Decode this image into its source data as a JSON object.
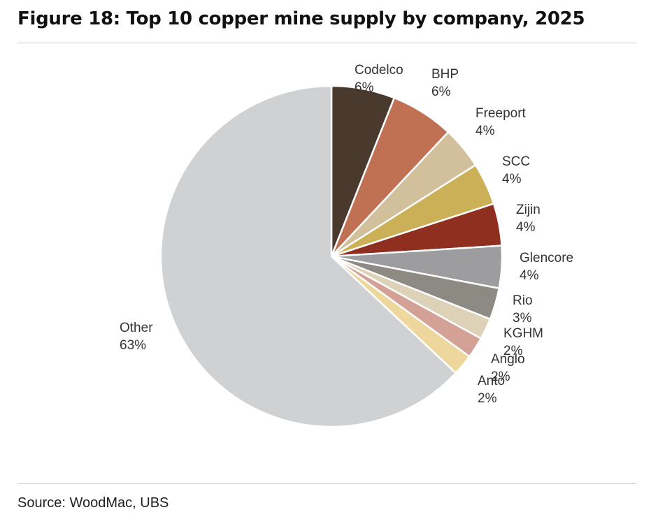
{
  "figure": {
    "title": "Figure 18: Top 10 copper mine supply by company, 2025",
    "source": "Source: WoodMac, UBS"
  },
  "chart_data": {
    "type": "pie",
    "title": "Figure 18: Top 10 copper mine supply by company, 2025",
    "unit": "%",
    "slices": [
      {
        "label": "Codelco",
        "value": 6,
        "color": "#4a3a2e"
      },
      {
        "label": "BHP",
        "value": 6,
        "color": "#c07153"
      },
      {
        "label": "Freeport",
        "value": 4,
        "color": "#d2bf9b"
      },
      {
        "label": "SCC",
        "value": 4,
        "color": "#cbb057"
      },
      {
        "label": "Zijin",
        "value": 4,
        "color": "#8e2f20"
      },
      {
        "label": "Glencore",
        "value": 4,
        "color": "#9d9da0"
      },
      {
        "label": "Rio",
        "value": 3,
        "color": "#8d8983"
      },
      {
        "label": "KGHM",
        "value": 2,
        "color": "#ddd1b8"
      },
      {
        "label": "Anglo",
        "value": 2,
        "color": "#d4a197"
      },
      {
        "label": "Anto",
        "value": 2,
        "color": "#eed79d"
      },
      {
        "label": "Other",
        "value": 63,
        "color": "#d0d1d3"
      }
    ],
    "start_angle": "12 o'clock",
    "direction": "clockwise",
    "legend": "none (direct labels)"
  }
}
